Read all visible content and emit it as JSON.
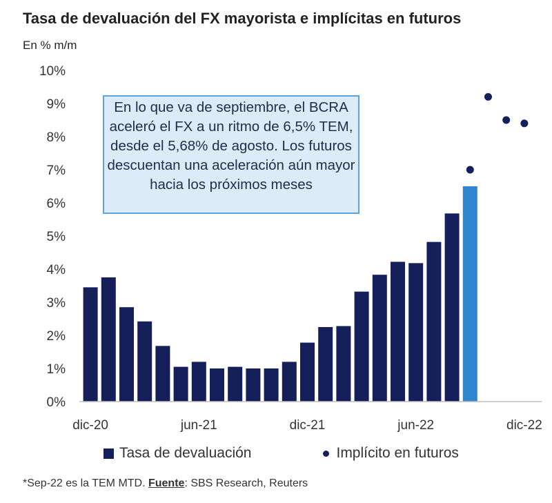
{
  "chart_data": {
    "type": "bar",
    "title": "Tasa de devaluación del FX mayorista e implícitas en futuros",
    "subtitle": "En % m/m",
    "xlabel": "",
    "ylabel": "",
    "ylim": [
      0,
      10
    ],
    "yticks": [
      "0%",
      "1%",
      "2%",
      "3%",
      "4%",
      "5%",
      "6%",
      "7%",
      "8%",
      "9%",
      "10%"
    ],
    "categories": [
      "dic-20",
      "ene-21",
      "feb-21",
      "mar-21",
      "abr-21",
      "may-21",
      "jun-21",
      "jul-21",
      "ago-21",
      "sep-21",
      "oct-21",
      "nov-21",
      "dic-21",
      "ene-22",
      "feb-22",
      "mar-22",
      "abr-22",
      "may-22",
      "jun-22",
      "jul-22",
      "ago-22",
      "sep-22",
      "oct-22",
      "nov-22",
      "dic-22"
    ],
    "xtick_labels": [
      {
        "category": "dic-20",
        "label": "dic-20"
      },
      {
        "category": "jun-21",
        "label": "jun-21"
      },
      {
        "category": "dic-21",
        "label": "dic-21"
      },
      {
        "category": "jun-22",
        "label": "jun-22"
      },
      {
        "category": "dic-22",
        "label": "dic-22"
      }
    ],
    "series": [
      {
        "name": "Tasa de devaluación",
        "kind": "bar",
        "color": "#15205a",
        "highlight": {
          "category": "sep-22",
          "color": "#2e86d1"
        },
        "values": [
          3.45,
          3.75,
          2.85,
          2.42,
          1.68,
          1.05,
          1.2,
          1.0,
          1.05,
          1.0,
          1.0,
          1.2,
          1.78,
          2.25,
          2.28,
          3.32,
          3.83,
          4.22,
          4.18,
          4.82,
          5.68,
          6.5,
          null,
          null,
          null
        ]
      },
      {
        "name": "Implícito en futuros",
        "kind": "scatter",
        "color": "#15205a",
        "values": [
          null,
          null,
          null,
          null,
          null,
          null,
          null,
          null,
          null,
          null,
          null,
          null,
          null,
          null,
          null,
          null,
          null,
          null,
          null,
          null,
          null,
          7.0,
          9.2,
          8.5,
          8.4
        ]
      }
    ],
    "annotation": "En lo que va de septiembre, el BCRA aceleró el FX a un ritmo de 6,5% TEM, desde el 5,68% de agosto. Los futuros descuentan una aceleración aún mayor hacia los próximos meses",
    "legend": {
      "position": "bottom"
    }
  },
  "footnote": {
    "prefix": "*Sep-22 es la TEM MTD. ",
    "source_label": "Fuente",
    "suffix": ": SBS Research, Reuters"
  }
}
